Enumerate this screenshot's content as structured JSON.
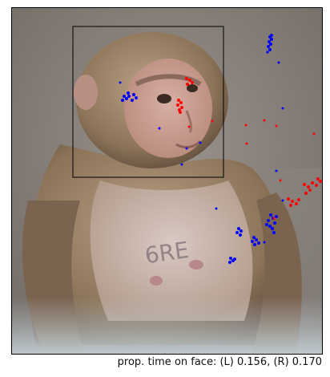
{
  "caption": "prop. time on face: (L) 0.156, (R) 0.170",
  "colors": {
    "left_eye_gaze": "#0000ff",
    "right_eye_gaze": "#ff0000",
    "face_box": "#000000"
  },
  "image_subject": "rhesus-macaque-photo",
  "chest_marking": "6RE"
}
